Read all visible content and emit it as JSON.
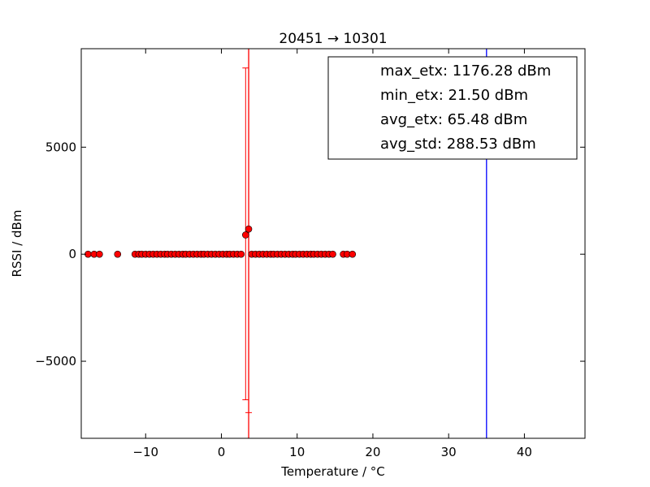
{
  "chart_data": {
    "type": "scatter",
    "title": "20451 → 10301",
    "xlabel": "Temperature / °C",
    "ylabel": "RSSI / dBm",
    "xlim": [
      -18.5,
      48
    ],
    "ylim": [
      -8600,
      9600
    ],
    "xticks": [
      -10,
      0,
      10,
      20,
      30,
      40
    ],
    "xtick_labels": [
      "−10",
      "0",
      "10",
      "20",
      "30",
      "40"
    ],
    "yticks": [
      -5000,
      0,
      5000
    ],
    "ytick_labels": [
      "−5000",
      "0",
      "5000"
    ],
    "grid": false,
    "legend_position": "top-right",
    "legend": [
      "max_etx: 1176.28 dBm",
      "min_etx: 21.50 dBm",
      "avg_etx: 65.48 dBm",
      "avg_std: 288.53 dBm"
    ],
    "colors": {
      "points": "#ff0000",
      "errorbars": "#ff0000",
      "vline_red": "#ff0000",
      "vline_blue": "#0000ff"
    },
    "vlines": [
      {
        "x": 3.6,
        "color": "#ff0000"
      },
      {
        "x": 35,
        "color": "#0000ff"
      }
    ],
    "errorbars": [
      {
        "x": 3.2,
        "y": 900,
        "low": -6800,
        "high": 8700
      },
      {
        "x": 3.6,
        "y": 1176,
        "low": -7400,
        "high": 9600
      }
    ],
    "series": [
      {
        "x": [
          -17.6,
          -16.8,
          -16.1,
          -13.7,
          -11.4,
          -10.9,
          -10.5,
          -10.0,
          -9.5,
          -9.0,
          -8.5,
          -8.0,
          -7.5,
          -7.1,
          -6.6,
          -6.1,
          -5.6,
          -5.1,
          -4.7,
          -4.2,
          -3.7,
          -3.2,
          -2.7,
          -2.3,
          -1.8,
          -1.3,
          -0.8,
          -0.3,
          0.2,
          0.7,
          1.1,
          1.6,
          2.1,
          2.6,
          3.2,
          3.6,
          4.0,
          4.5,
          5.0,
          5.5,
          6.0,
          6.5,
          6.9,
          7.4,
          7.9,
          8.4,
          8.9,
          9.4,
          9.8,
          10.3,
          10.8,
          11.3,
          11.8,
          12.2,
          12.7,
          13.2,
          13.7,
          14.2,
          14.7,
          16.1,
          16.6,
          17.3
        ],
        "y": [
          0,
          0,
          0,
          0,
          0,
          0,
          0,
          0,
          0,
          0,
          0,
          0,
          0,
          0,
          0,
          0,
          0,
          0,
          0,
          0,
          0,
          0,
          0,
          0,
          0,
          0,
          0,
          0,
          0,
          0,
          0,
          0,
          0,
          0,
          900,
          1176,
          0,
          0,
          0,
          0,
          0,
          0,
          0,
          0,
          0,
          0,
          0,
          0,
          0,
          0,
          0,
          0,
          0,
          0,
          0,
          0,
          0,
          0,
          0,
          0,
          0,
          0
        ]
      }
    ]
  }
}
